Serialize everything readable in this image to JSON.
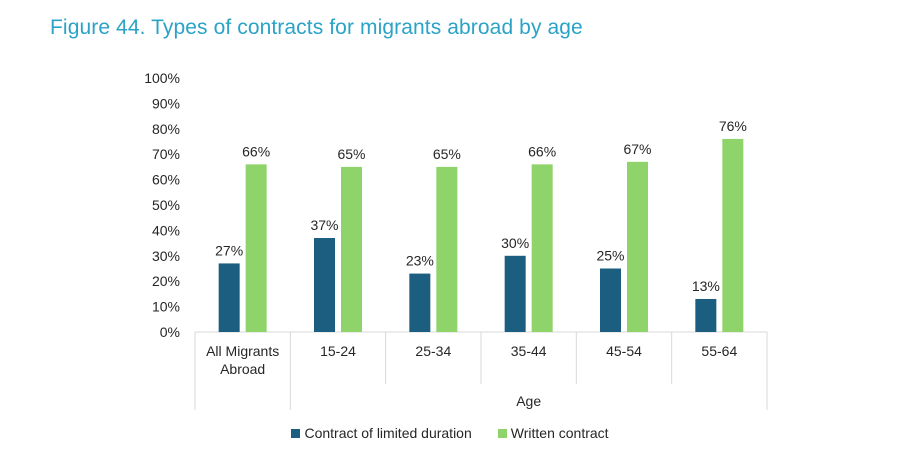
{
  "figure_title": "Figure 44. Types of contracts for migrants abroad by age",
  "chart_data": {
    "type": "bar",
    "title": "Figure 44. Types of contracts for migrants abroad by age",
    "xlabel": "Age",
    "ylabel": "",
    "ylim": [
      0,
      100
    ],
    "yticks": [
      "0%",
      "10%",
      "20%",
      "30%",
      "40%",
      "50%",
      "60%",
      "70%",
      "80%",
      "90%",
      "100%"
    ],
    "categories": [
      [
        "All Migrants",
        "Abroad"
      ],
      [
        "15-24"
      ],
      [
        "25-34"
      ],
      [
        "35-44"
      ],
      [
        "45-54"
      ],
      [
        "55-64"
      ]
    ],
    "series": [
      {
        "name": "Contract of limited duration",
        "color": "#1b5e80",
        "values": [
          27,
          37,
          23,
          30,
          25,
          13
        ],
        "labels": [
          "27%",
          "37%",
          "23%",
          "30%",
          "25%",
          "13%"
        ]
      },
      {
        "name": "Written contract",
        "color": "#8fd46a",
        "values": [
          66,
          65,
          65,
          66,
          67,
          76
        ],
        "labels": [
          "66%",
          "65%",
          "65%",
          "66%",
          "67%",
          "76%"
        ]
      }
    ],
    "legend_position": "bottom",
    "grid": false
  }
}
